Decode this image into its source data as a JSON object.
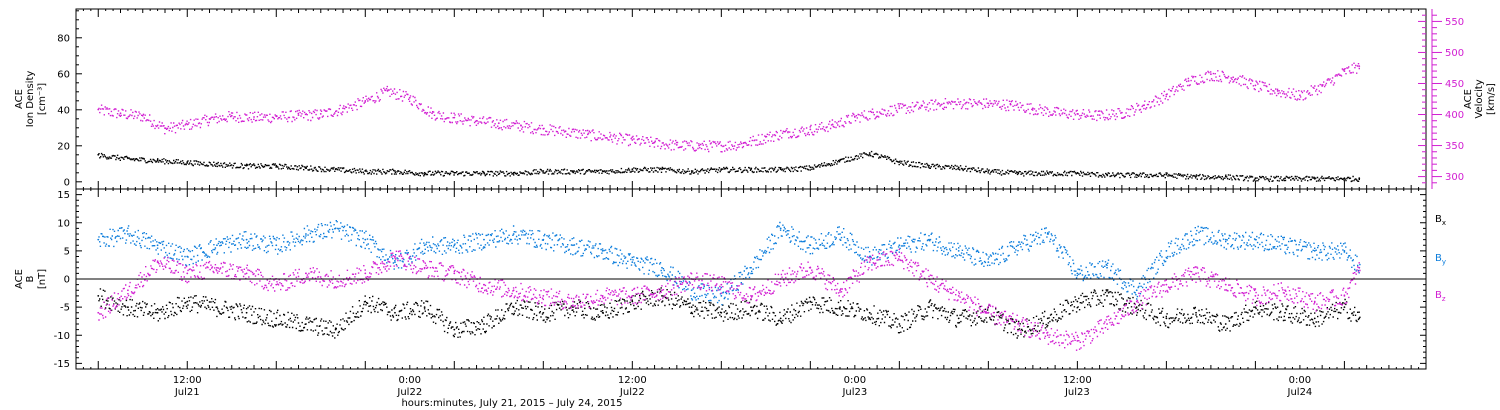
{
  "chart_data": [
    {
      "type": "scatter",
      "panel": "top",
      "y_left_label": [
        "ACE",
        "Ion Density",
        "[cm⁻³]"
      ],
      "y_right_label": [
        "ACE",
        "Velocity",
        "[km/s]"
      ],
      "y_left_range": [
        -4,
        96
      ],
      "y_left_ticks": [
        0,
        20,
        40,
        60,
        80
      ],
      "y_right_range": [
        280,
        570
      ],
      "y_right_ticks": [
        300,
        350,
        400,
        450,
        500,
        550
      ],
      "series": [
        {
          "name": "density",
          "axis": "left",
          "color": "#000000",
          "points_x_hours": [
            0,
            4,
            8,
            12,
            16,
            20,
            24,
            28,
            32,
            36,
            40,
            44,
            48,
            52,
            56,
            60,
            64,
            68,
            72,
            76,
            80,
            84,
            88,
            92,
            96,
            100,
            104,
            108,
            112,
            116,
            120,
            124,
            128,
            132,
            136,
            140,
            144,
            148,
            152,
            156,
            160,
            164,
            168,
            170
          ],
          "points_y": [
            15,
            13,
            12,
            11,
            10,
            9,
            9,
            8,
            7,
            6,
            6,
            5,
            5,
            5,
            5,
            6,
            6,
            6,
            7,
            7,
            6,
            7,
            7,
            7,
            8,
            12,
            16,
            11,
            9,
            8,
            6,
            5,
            5,
            5,
            4,
            4,
            4,
            3,
            3,
            2,
            2,
            2,
            2,
            2
          ]
        },
        {
          "name": "velocity",
          "axis": "right",
          "color": "#d21ed2",
          "points_x_hours": [
            0,
            3,
            6,
            9,
            12,
            15,
            18,
            21,
            24,
            27,
            30,
            33,
            36,
            39,
            42,
            45,
            48,
            51,
            54,
            57,
            60,
            63,
            66,
            69,
            72,
            75,
            78,
            81,
            84,
            87,
            90,
            93,
            96,
            99,
            102,
            105,
            108,
            111,
            114,
            117,
            120,
            123,
            126,
            129,
            132,
            135,
            138,
            141,
            144,
            147,
            150,
            153,
            156,
            159,
            162,
            165,
            168,
            170
          ],
          "points_y": [
            408,
            402,
            398,
            378,
            384,
            393,
            398,
            396,
            397,
            399,
            401,
            410,
            422,
            438,
            427,
            402,
            395,
            390,
            386,
            382,
            377,
            373,
            368,
            364,
            359,
            355,
            351,
            350,
            350,
            354,
            364,
            372,
            376,
            384,
            396,
            404,
            410,
            414,
            418,
            419,
            418,
            416,
            410,
            404,
            401,
            399,
            403,
            415,
            432,
            454,
            465,
            460,
            447,
            438,
            431,
            446,
            470,
            478
          ]
        }
      ]
    },
    {
      "type": "scatter",
      "panel": "bottom",
      "y_label": [
        "ACE",
        "B",
        "[nT]"
      ],
      "y_range": [
        -16,
        16
      ],
      "y_ticks": [
        -15,
        -10,
        -5,
        0,
        5,
        10,
        15
      ],
      "legend": [
        "Bx",
        "By",
        "Bz"
      ],
      "series": [
        {
          "name": "Bx",
          "color": "#000000",
          "points_x_hours": [
            0,
            4,
            8,
            12,
            16,
            20,
            24,
            28,
            32,
            36,
            40,
            44,
            48,
            52,
            56,
            60,
            64,
            68,
            72,
            76,
            80,
            84,
            88,
            92,
            96,
            100,
            104,
            108,
            112,
            116,
            120,
            124,
            128,
            132,
            136,
            140,
            144,
            148,
            152,
            156,
            160,
            164,
            168,
            170
          ],
          "points_y": [
            -3,
            -5,
            -6,
            -4,
            -5,
            -6,
            -7,
            -8,
            -9,
            -4,
            -6,
            -5,
            -9,
            -8,
            -5,
            -6,
            -5,
            -6,
            -4,
            -3,
            -5,
            -6,
            -5,
            -7,
            -4,
            -5,
            -6,
            -8,
            -5,
            -7,
            -6,
            -9,
            -7,
            -4,
            -3,
            -5,
            -7,
            -6,
            -8,
            -5,
            -6,
            -7,
            -5,
            -7
          ]
        },
        {
          "name": "By",
          "color": "#0c7ddc",
          "points_x_hours": [
            0,
            4,
            8,
            12,
            16,
            20,
            24,
            28,
            32,
            36,
            40,
            44,
            48,
            52,
            56,
            60,
            64,
            68,
            72,
            76,
            80,
            84,
            88,
            92,
            96,
            100,
            104,
            108,
            112,
            116,
            120,
            124,
            128,
            132,
            136,
            140,
            144,
            148,
            152,
            156,
            160,
            164,
            168,
            170
          ],
          "points_y": [
            7,
            8,
            6,
            4,
            6,
            7,
            6,
            8,
            9,
            7,
            3,
            6,
            6,
            7,
            8,
            7,
            6,
            5,
            3,
            2,
            -2,
            -3,
            2,
            9,
            6,
            8,
            4,
            6,
            7,
            5,
            3,
            6,
            8,
            1,
            2,
            -2,
            5,
            8,
            7,
            7,
            6,
            5,
            5,
            2
          ]
        },
        {
          "name": "Bz",
          "color": "#d21ed2",
          "points_x_hours": [
            0,
            4,
            8,
            12,
            16,
            20,
            24,
            28,
            32,
            36,
            40,
            44,
            48,
            52,
            56,
            60,
            64,
            68,
            72,
            76,
            80,
            84,
            88,
            92,
            96,
            100,
            104,
            108,
            112,
            116,
            120,
            124,
            128,
            132,
            136,
            140,
            144,
            148,
            152,
            156,
            160,
            164,
            168,
            170
          ],
          "points_y": [
            -6,
            -2,
            3,
            1,
            2,
            1,
            -1,
            1,
            0,
            1,
            4,
            2,
            1,
            -1,
            -2,
            -3,
            -4,
            -3,
            -3,
            -2,
            0,
            -1,
            -3,
            0,
            2,
            -2,
            3,
            4,
            0,
            -3,
            -6,
            -8,
            -10,
            -11,
            -8,
            -4,
            -1,
            1,
            -1,
            -3,
            -2,
            -4,
            -3,
            2
          ]
        }
      ]
    }
  ],
  "x_axis": {
    "range_hours": [
      -3,
      179
    ],
    "title": "hours:minutes, July 21, 2015 – July 24, 2015",
    "major_ticks": [
      {
        "hour": 12,
        "time": "12:00",
        "day": "Jul21"
      },
      {
        "hour": 42,
        "time": "0:00",
        "day": "Jul22"
      },
      {
        "hour": 72,
        "time": "12:00",
        "day": "Jul22"
      },
      {
        "hour": 102,
        "time": "0:00",
        "day": "Jul23"
      },
      {
        "hour": 132,
        "time": "12:00",
        "day": "Jul23"
      },
      {
        "hour": 162,
        "time": "0:00",
        "day": "Jul24"
      }
    ]
  },
  "legend_labels": {
    "bx": "B",
    "bx_sub": "x",
    "by": "B",
    "by_sub": "y",
    "bz": "B",
    "bz_sub": "z"
  },
  "colors": {
    "density": "#000000",
    "velocity": "#d21ed2",
    "bx": "#000000",
    "by": "#0c7ddc",
    "bz": "#d21ed2",
    "axes": "#000000"
  }
}
